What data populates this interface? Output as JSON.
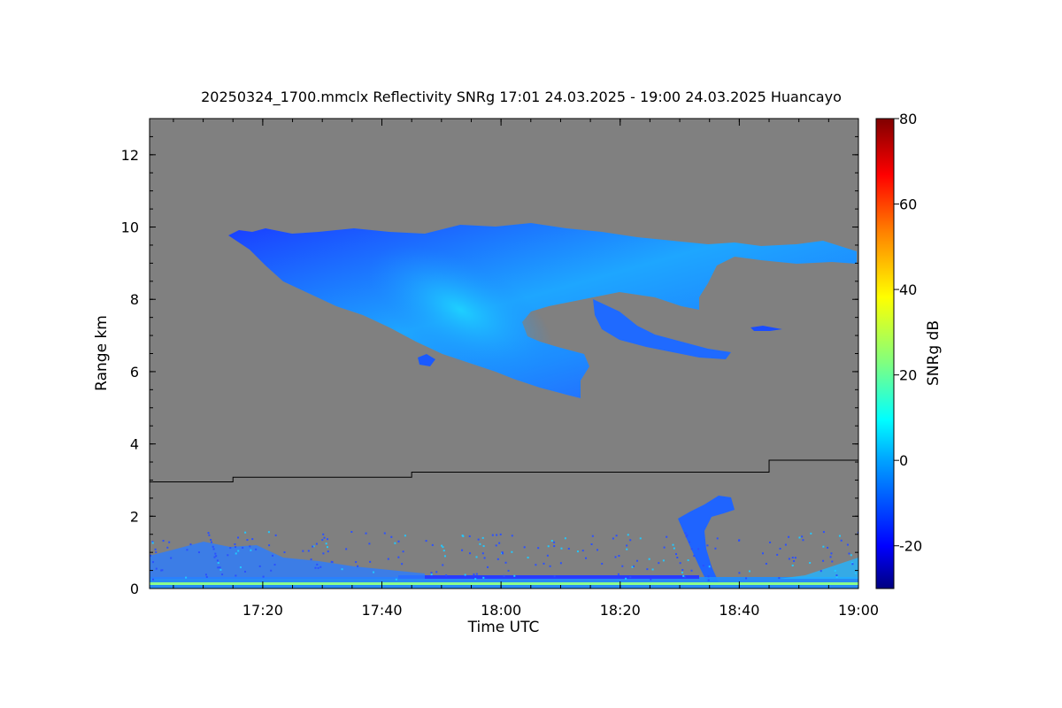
{
  "chart_data": {
    "type": "heatmap",
    "title": "20250324_1700.mmclx Reflectivity SNRg   17:01 24.03.2025 - 19:00 24.03.2025 Huancayo",
    "xlabel": "Time UTC",
    "ylabel": "Range km",
    "colorbar_label": "SNRg dB",
    "x_ticks": [
      "17:20",
      "17:40",
      "18:00",
      "18:20",
      "18:40",
      "19:00"
    ],
    "x_tick_minutes": [
      1040,
      1060,
      1080,
      1100,
      1120,
      1140
    ],
    "xlim_minutes": [
      1021,
      1140
    ],
    "y_ticks": [
      "0",
      "2",
      "4",
      "6",
      "8",
      "10",
      "12"
    ],
    "y_tick_values": [
      0,
      2,
      4,
      6,
      8,
      10,
      12
    ],
    "ylim": [
      0,
      13
    ],
    "colorbar_ticks": [
      "-20",
      "0",
      "20",
      "40",
      "60",
      "80"
    ],
    "colorbar_tick_values": [
      -20,
      0,
      20,
      40,
      60,
      80
    ],
    "colorbar_range": [
      -30,
      80
    ],
    "background_color": "#808080",
    "colormap": [
      "#000080",
      "#0000ff",
      "#0080ff",
      "#00ffff",
      "#80ff80",
      "#ffff00",
      "#ff8000",
      "#ff0000",
      "#800000"
    ],
    "boundary_line": {
      "x_minutes": [
        1021,
        1035,
        1035,
        1065,
        1065,
        1125,
        1125,
        1140
      ],
      "y_km": [
        2.95,
        2.95,
        3.08,
        3.08,
        3.22,
        3.22,
        3.55,
        3.55
      ]
    }
  }
}
